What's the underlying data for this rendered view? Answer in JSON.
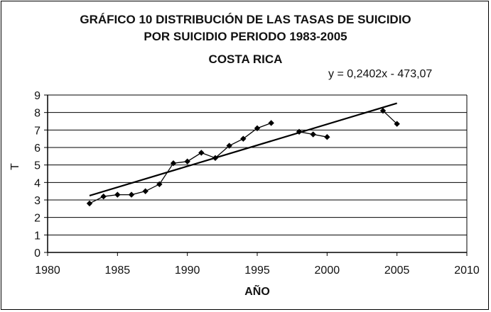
{
  "chart_data": {
    "type": "scatter",
    "title": "GRÁFICO 10 DISTRIBUCIÓN DE LAS TASAS DE SUICIDIO",
    "title_line2": "POR SUICIDIO PERIODO 1983-2005",
    "subtitle": "COSTA RICA",
    "xlabel": "AÑO",
    "ylabel": "T",
    "xlim": [
      1980,
      2010
    ],
    "ylim": [
      0,
      9
    ],
    "xticks": [
      "1980",
      "1985",
      "1990",
      "1995",
      "2000",
      "2005",
      "2010"
    ],
    "yticks": [
      "0",
      "1",
      "2",
      "3",
      "4",
      "5",
      "6",
      "7",
      "8",
      "9"
    ],
    "grid": "horizontal",
    "series": [
      {
        "x": [
          1983,
          1984,
          1985,
          1986,
          1987,
          1988,
          1989,
          1990,
          1991,
          1992,
          1993,
          1994,
          1995,
          1996,
          1998,
          1999,
          2000,
          2004,
          2005
        ],
        "y": [
          2.8,
          3.2,
          3.3,
          3.3,
          3.5,
          3.9,
          5.1,
          5.2,
          5.7,
          5.4,
          6.1,
          6.5,
          7.1,
          7.4,
          6.9,
          6.75,
          6.6,
          8.1,
          7.35
        ],
        "segments": [
          [
            0,
            13
          ],
          [
            14,
            16
          ],
          [
            17,
            18
          ]
        ]
      }
    ],
    "trendline": {
      "equation": "y = 0,2402x - 473,07",
      "slope": 0.2402,
      "intercept": -473.07,
      "x_range": [
        1983,
        2005
      ]
    }
  }
}
